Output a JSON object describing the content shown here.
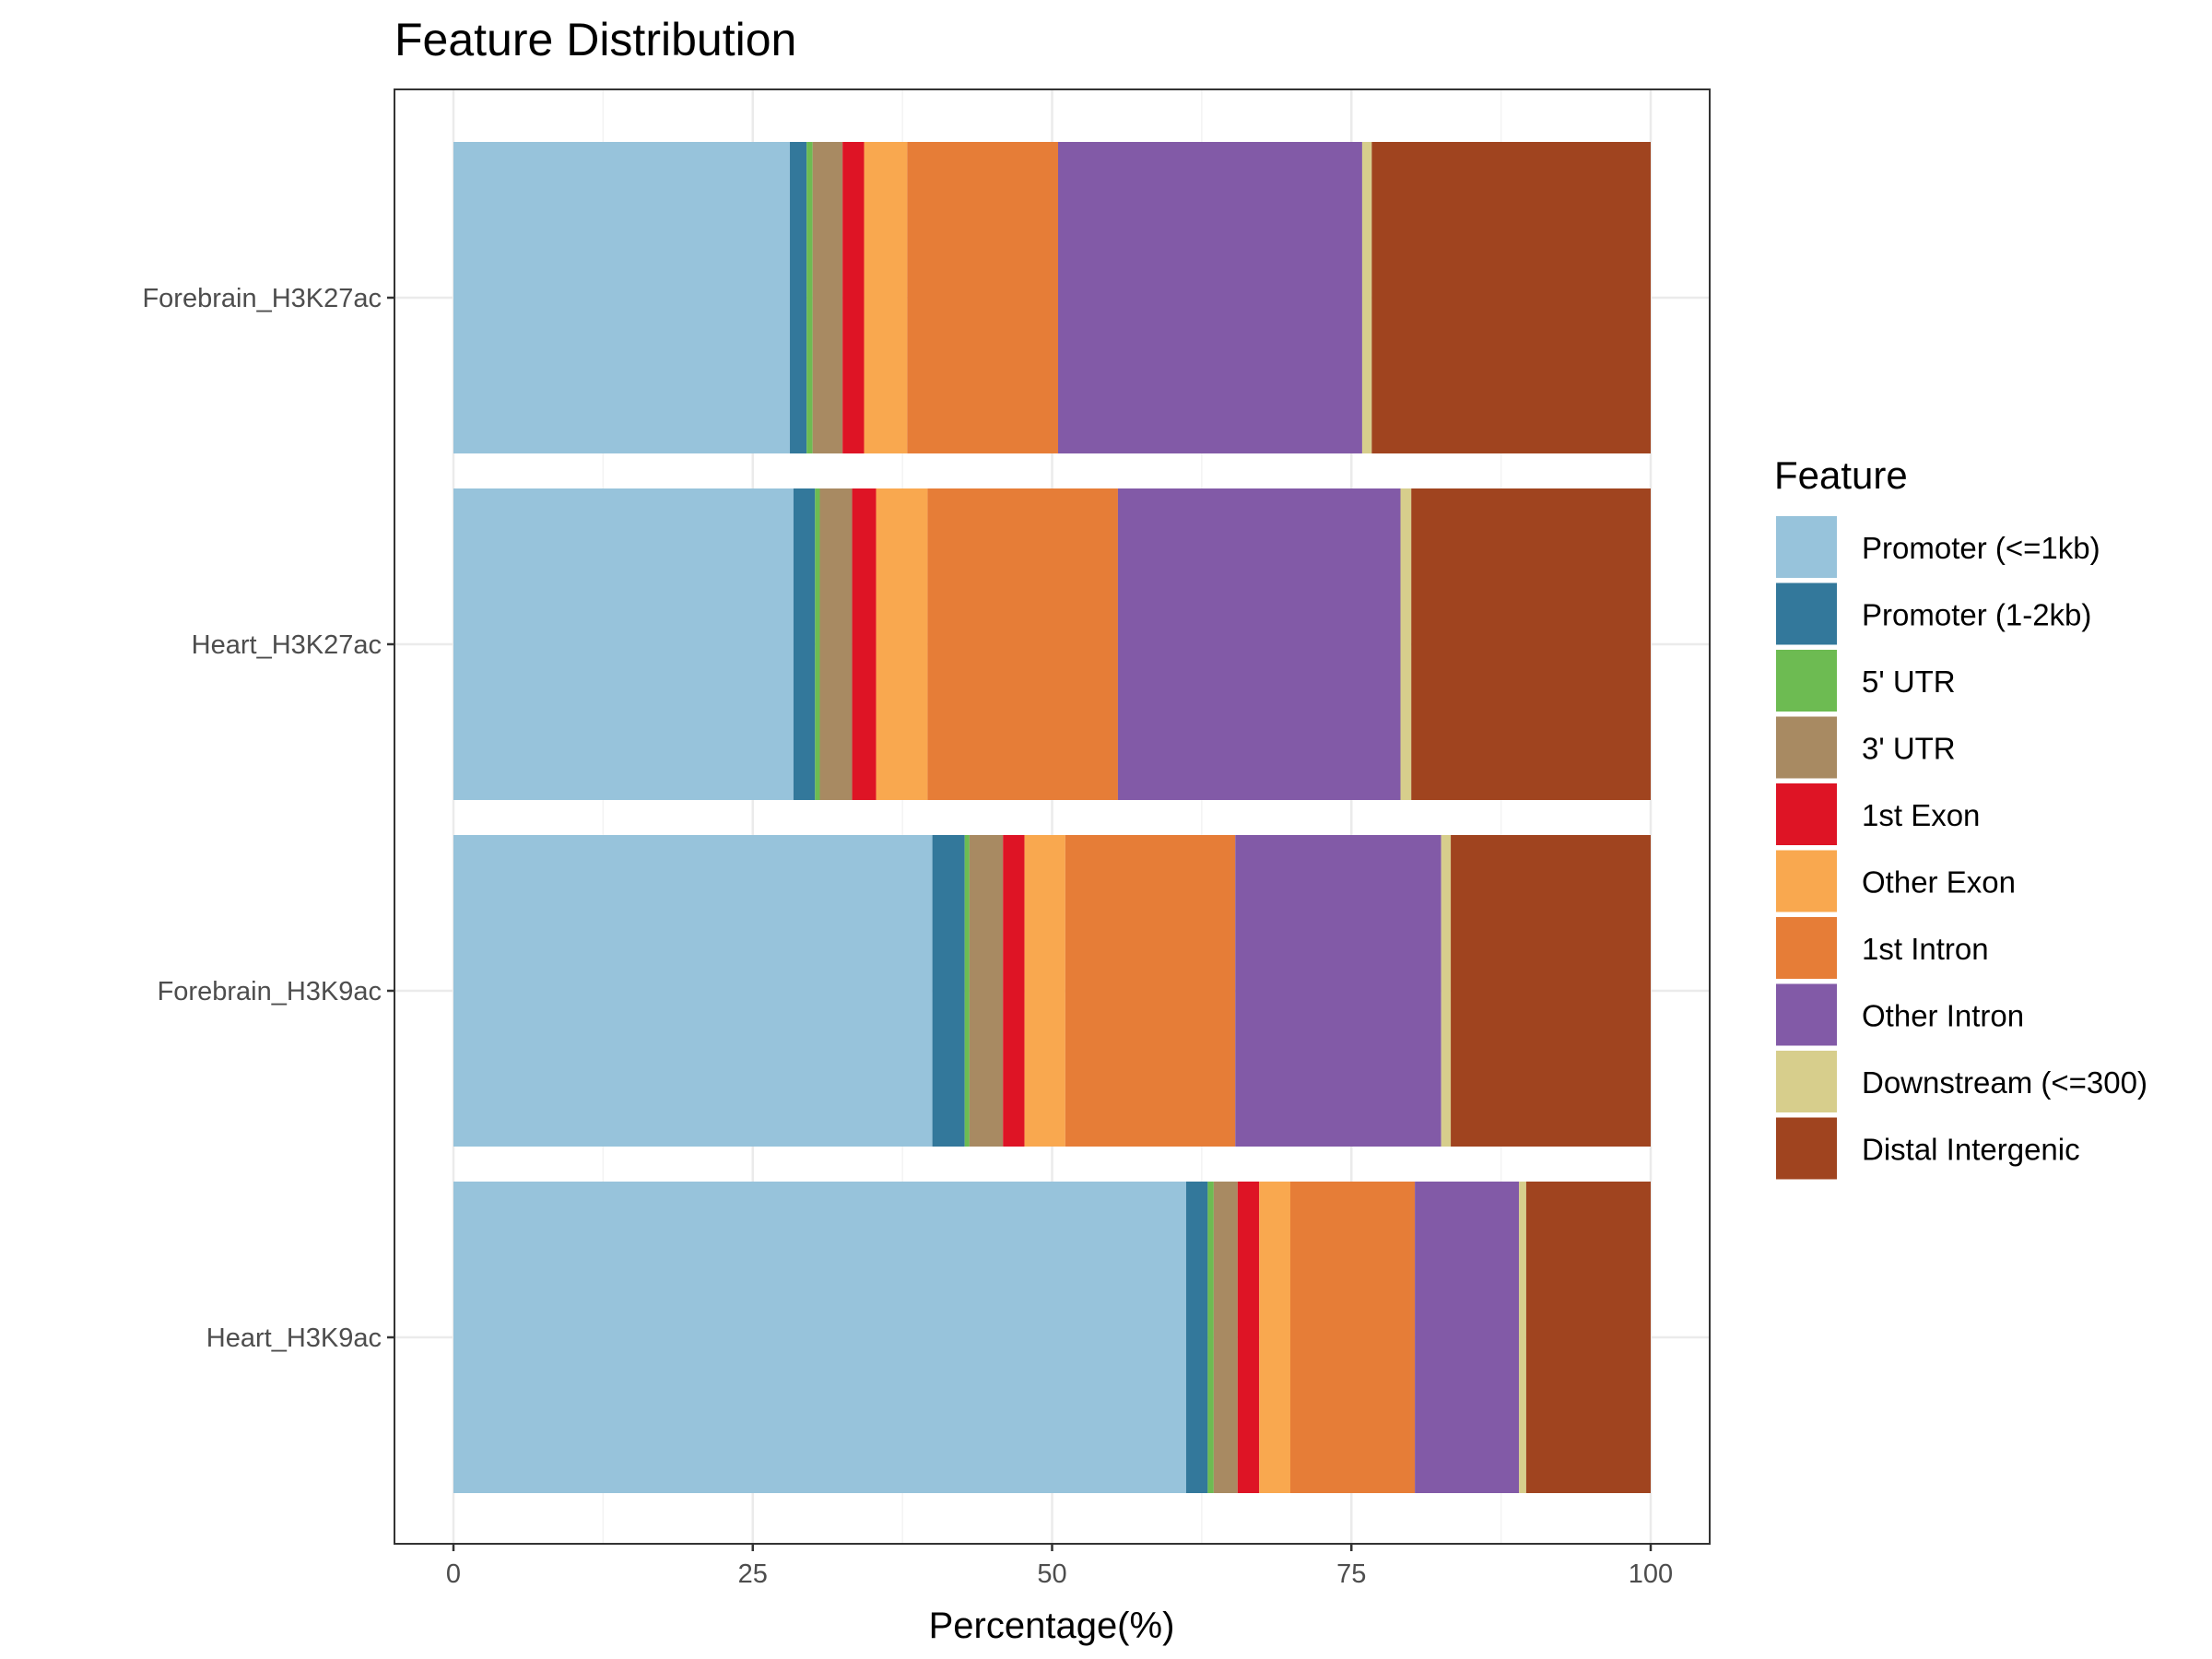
{
  "chart_data": {
    "type": "bar",
    "orientation": "horizontal",
    "stacked": true,
    "title": "Feature Distribution",
    "xlabel": "Percentage(%)",
    "ylabel": "",
    "xlim": [
      0,
      100
    ],
    "xticks": [
      0,
      25,
      50,
      75,
      100
    ],
    "xtick_labels": [
      "0",
      "25",
      "50",
      "75",
      "100"
    ],
    "grid": true,
    "legend": {
      "title": "Feature",
      "position": "right"
    },
    "categories": [
      "Forebrain_H3K27ac",
      "Heart_H3K27ac",
      "Forebrain_H3K9ac",
      "Heart_H3K9ac"
    ],
    "series": [
      {
        "name": "Promoter (<=1kb)",
        "color": "#97C3DB",
        "values": [
          28.1,
          28.4,
          40.0,
          61.2
        ]
      },
      {
        "name": "Promoter (1-2kb)",
        "color": "#33789B",
        "values": [
          1.4,
          1.8,
          2.7,
          1.8
        ]
      },
      {
        "name": "5' UTR",
        "color": "#6DBB52",
        "values": [
          0.5,
          0.4,
          0.4,
          0.5
        ]
      },
      {
        "name": "3' UTR",
        "color": "#A88A62",
        "values": [
          2.5,
          2.7,
          2.8,
          2.0
        ]
      },
      {
        "name": "1st Exon",
        "color": "#DE1425",
        "values": [
          1.8,
          2.0,
          1.8,
          1.8
        ]
      },
      {
        "name": "Other Exon",
        "color": "#F9A84F",
        "values": [
          3.6,
          4.3,
          3.4,
          2.6
        ]
      },
      {
        "name": "1st Intron",
        "color": "#E67D37",
        "values": [
          12.6,
          15.9,
          14.2,
          10.4
        ]
      },
      {
        "name": "Other Intron",
        "color": "#825AA7",
        "values": [
          25.4,
          23.6,
          17.2,
          8.7
        ]
      },
      {
        "name": "Downstream (<=300)",
        "color": "#D7CE8C",
        "values": [
          0.8,
          0.9,
          0.8,
          0.6
        ]
      },
      {
        "name": "Distal Intergenic",
        "color": "#A0441F",
        "values": [
          23.3,
          20.0,
          16.7,
          10.4
        ]
      }
    ]
  }
}
